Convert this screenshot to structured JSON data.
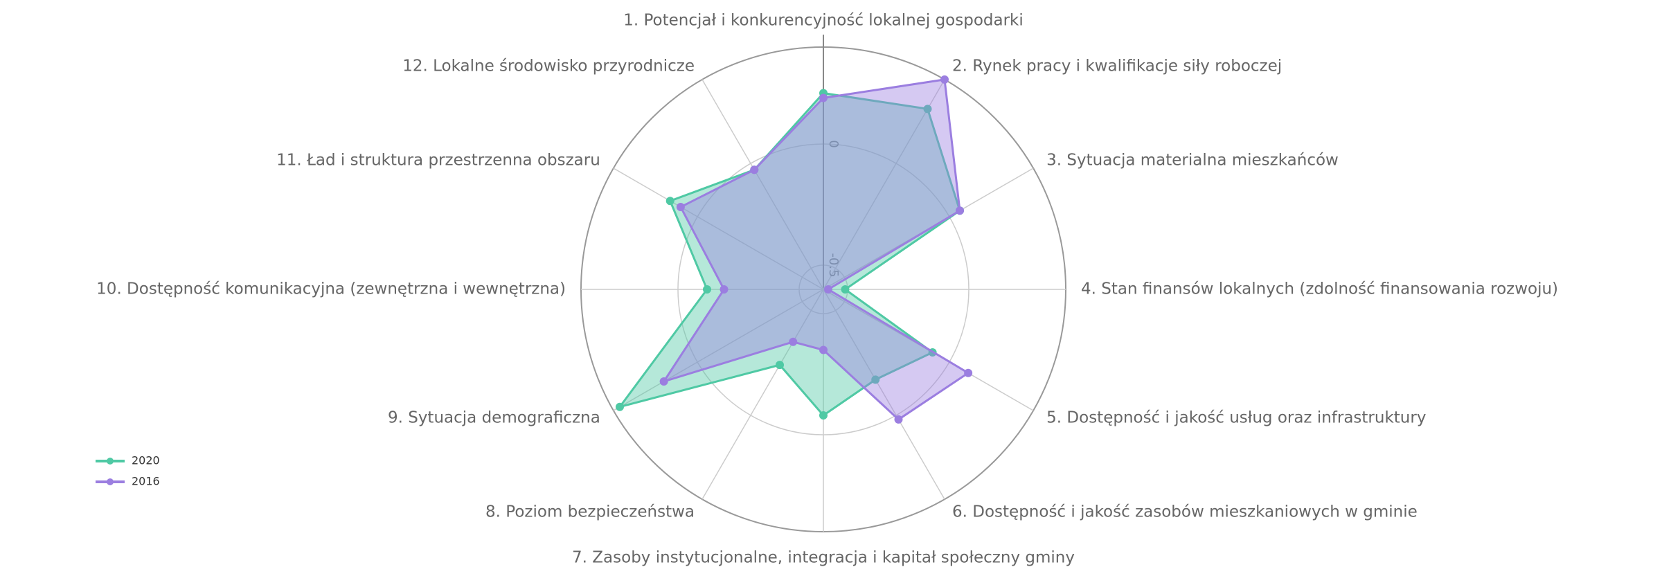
{
  "chart_data": {
    "type": "radar",
    "categories": [
      "1. Potencjał i konkurencyjność lokalnej gospodarki",
      "2. Rynek pracy i kwalifikacje siły roboczej",
      "3. Sytuacja materialna mieszkańców",
      "4. Stan finansów lokalnych  (zdolność finansowania rozwoju)",
      "5. Dostępność i jakość usług oraz infrastruktury",
      "6. Dostępność i jakość zasobów mieszkaniowych w gminie",
      "7. Zasoby instytucjonalne, integracja i kapitał społeczny gminy",
      "8. Poziom bezpieczeństwa",
      "9. Sytuacja demograficzna",
      "10. Dostępność komunikacyjna (zewnętrzna i wewnętrzna)",
      "11. Ład i struktura przestrzenna obszaru",
      "12. Lokalne środowisko przyrodnicze"
    ],
    "series": [
      {
        "name": "2020",
        "color": "#4fc9a4",
        "values": [
          0.21,
          0.26,
          0.05,
          -0.51,
          -0.08,
          -0.17,
          -0.08,
          -0.24,
          0.37,
          -0.12,
          0.13,
          -0.03
        ]
      },
      {
        "name": "2016",
        "color": "#9b7ee0",
        "values": [
          0.19,
          0.4,
          0.05,
          -0.58,
          0.09,
          0.02,
          -0.35,
          -0.35,
          0.16,
          -0.19,
          0.08,
          -0.03
        ]
      }
    ],
    "rlim": [
      -0.6,
      0.4
    ],
    "rticks": [
      -0.5,
      0
    ],
    "grid": true,
    "legend": "lower left"
  }
}
